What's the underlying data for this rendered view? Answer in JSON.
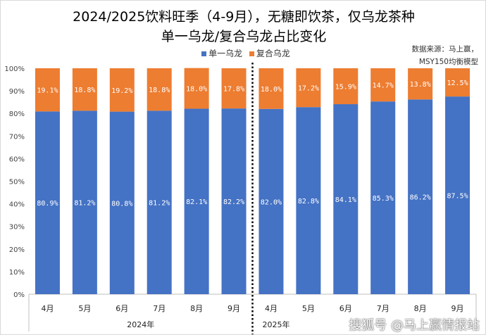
{
  "chart_data": {
    "type": "bar",
    "stacked": true,
    "title": "2024/2025饮料旺季（4-9月），无糖即饮茶，仅乌龙茶种",
    "subtitle": "单一乌龙/复合乌龙占比变化",
    "source": [
      "数据来源：马上赢，",
      "MSY150均衡模型"
    ],
    "categories": [
      "4月",
      "5月",
      "6月",
      "7月",
      "8月",
      "9月",
      "4月",
      "5月",
      "6月",
      "7月",
      "8月",
      "9月"
    ],
    "groups": [
      {
        "label": "2024年",
        "count": 6
      },
      {
        "label": "2025年",
        "count": 6
      }
    ],
    "series": [
      {
        "name": "单一乌龙",
        "color": "#4472C4",
        "values": [
          80.9,
          81.2,
          80.8,
          81.2,
          82.1,
          82.2,
          82.0,
          82.8,
          84.1,
          85.3,
          86.2,
          87.5
        ]
      },
      {
        "name": "复合乌龙",
        "color": "#ED7D31",
        "values": [
          19.1,
          18.8,
          19.2,
          18.8,
          18.0,
          17.8,
          18.0,
          17.2,
          15.9,
          14.7,
          13.8,
          12.5
        ]
      }
    ],
    "yticks": [
      "0%",
      "10%",
      "20%",
      "30%",
      "40%",
      "50%",
      "60%",
      "70%",
      "80%",
      "90%",
      "100%"
    ],
    "ylim": [
      0,
      100
    ],
    "legend": "top"
  },
  "watermark": "搜狐号 @马上赢情报站"
}
